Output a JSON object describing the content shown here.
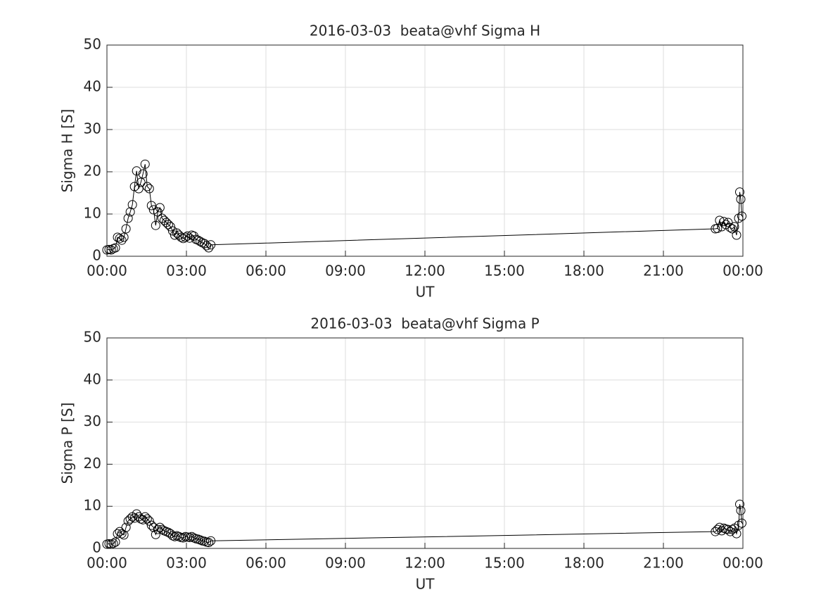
{
  "chart_data": [
    {
      "type": "line",
      "title": "2016-03-03  beata@vhf Sigma H",
      "x_label": "UT",
      "y_label": "Sigma H [S]",
      "x": [
        0,
        0.08,
        0.16,
        0.24,
        0.32,
        0.4,
        0.48,
        0.56,
        0.64,
        0.72,
        0.8,
        0.88,
        0.96,
        1.04,
        1.12,
        1.2,
        1.28,
        1.36,
        1.44,
        1.52,
        1.6,
        1.68,
        1.76,
        1.84,
        1.92,
        2.0,
        2.08,
        2.16,
        2.24,
        2.32,
        2.4,
        2.48,
        2.56,
        2.64,
        2.72,
        2.8,
        2.88,
        2.96,
        3.04,
        3.12,
        3.2,
        3.28,
        3.36,
        3.44,
        3.52,
        3.6,
        3.68,
        3.76,
        3.84,
        3.92,
        22.96,
        23.04,
        23.12,
        23.2,
        23.28,
        23.36,
        23.44,
        23.52,
        23.6,
        23.68,
        23.76,
        23.84,
        23.88,
        23.92,
        23.96
      ],
      "values": [
        1.5,
        1.6,
        1.5,
        1.8,
        2.0,
        4.5,
        4.2,
        3.8,
        4.5,
        6.5,
        9.0,
        10.5,
        12.2,
        16.5,
        20.2,
        16.0,
        17.5,
        19.5,
        21.8,
        16.5,
        16.0,
        12.0,
        11.0,
        7.3,
        10.5,
        11.5,
        9.0,
        8.5,
        8.0,
        7.5,
        7.0,
        6.0,
        5.0,
        5.5,
        5.0,
        4.5,
        4.2,
        4.5,
        4.8,
        4.3,
        5.0,
        4.8,
        4.0,
        3.8,
        3.5,
        3.2,
        3.0,
        2.5,
        2.0,
        2.7,
        6.5,
        6.6,
        8.5,
        7.0,
        8.2,
        7.5,
        8.0,
        6.8,
        6.5,
        7.0,
        5.0,
        9.0,
        15.2,
        13.5,
        9.5
      ],
      "color": "#000000",
      "marker": "circle",
      "grid": true,
      "xlim": [
        0,
        24
      ],
      "xticks": [
        {
          "value": 0,
          "label": "00:00"
        },
        {
          "value": 3,
          "label": "03:00"
        },
        {
          "value": 6,
          "label": "06:00"
        },
        {
          "value": 9,
          "label": "09:00"
        },
        {
          "value": 12,
          "label": "12:00"
        },
        {
          "value": 15,
          "label": "15:00"
        },
        {
          "value": 18,
          "label": "18:00"
        },
        {
          "value": 21,
          "label": "21:00"
        },
        {
          "value": 24,
          "label": "00:00"
        }
      ],
      "ylim": [
        0,
        50
      ],
      "yticks": [
        0,
        10,
        20,
        30,
        40,
        50
      ]
    },
    {
      "type": "line",
      "title": "2016-03-03  beata@vhf Sigma P",
      "x_label": "UT",
      "y_label": "Sigma P [S]",
      "x": [
        0,
        0.08,
        0.16,
        0.24,
        0.32,
        0.4,
        0.48,
        0.56,
        0.64,
        0.72,
        0.8,
        0.88,
        0.96,
        1.04,
        1.12,
        1.2,
        1.28,
        1.36,
        1.44,
        1.52,
        1.6,
        1.68,
        1.76,
        1.84,
        1.92,
        2.0,
        2.08,
        2.16,
        2.24,
        2.32,
        2.4,
        2.48,
        2.56,
        2.64,
        2.72,
        2.8,
        2.88,
        2.96,
        3.04,
        3.12,
        3.2,
        3.28,
        3.36,
        3.44,
        3.52,
        3.6,
        3.68,
        3.76,
        3.84,
        3.92,
        22.96,
        23.04,
        23.12,
        23.2,
        23.28,
        23.36,
        23.44,
        23.52,
        23.6,
        23.68,
        23.76,
        23.84,
        23.88,
        23.92,
        23.96
      ],
      "values": [
        1.0,
        1.1,
        1.0,
        1.2,
        1.5,
        3.5,
        4.0,
        3.5,
        3.2,
        5.0,
        6.5,
        7.0,
        7.5,
        7.2,
        8.2,
        7.5,
        7.0,
        6.8,
        7.5,
        7.0,
        6.5,
        5.5,
        5.0,
        3.3,
        4.5,
        5.0,
        4.5,
        4.2,
        4.0,
        3.8,
        3.5,
        3.0,
        2.8,
        3.0,
        2.8,
        2.6,
        2.5,
        2.8,
        2.7,
        2.6,
        2.8,
        2.5,
        2.3,
        2.2,
        2.0,
        1.8,
        1.7,
        1.5,
        1.4,
        1.8,
        4.0,
        4.5,
        5.0,
        4.2,
        4.8,
        4.6,
        4.5,
        4.0,
        4.5,
        4.8,
        3.5,
        5.5,
        10.5,
        9.0,
        6.0
      ],
      "color": "#000000",
      "marker": "circle",
      "grid": true,
      "xlim": [
        0,
        24
      ],
      "xticks": [
        {
          "value": 0,
          "label": "00:00"
        },
        {
          "value": 3,
          "label": "03:00"
        },
        {
          "value": 6,
          "label": "06:00"
        },
        {
          "value": 9,
          "label": "09:00"
        },
        {
          "value": 12,
          "label": "12:00"
        },
        {
          "value": 15,
          "label": "15:00"
        },
        {
          "value": 18,
          "label": "18:00"
        },
        {
          "value": 21,
          "label": "21:00"
        },
        {
          "value": 24,
          "label": "00:00"
        }
      ],
      "ylim": [
        0,
        50
      ],
      "yticks": [
        0,
        10,
        20,
        30,
        40,
        50
      ]
    }
  ]
}
